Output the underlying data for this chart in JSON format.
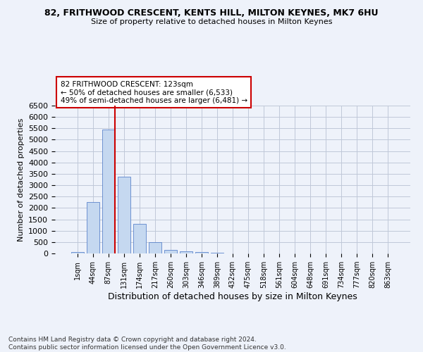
{
  "title": "82, FRITHWOOD CRESCENT, KENTS HILL, MILTON KEYNES, MK7 6HU",
  "subtitle": "Size of property relative to detached houses in Milton Keynes",
  "xlabel": "Distribution of detached houses by size in Milton Keynes",
  "ylabel": "Number of detached properties",
  "footer_line1": "Contains HM Land Registry data © Crown copyright and database right 2024.",
  "footer_line2": "Contains public sector information licensed under the Open Government Licence v3.0.",
  "bar_labels": [
    "1sqm",
    "44sqm",
    "87sqm",
    "131sqm",
    "174sqm",
    "217sqm",
    "260sqm",
    "303sqm",
    "346sqm",
    "389sqm",
    "432sqm",
    "475sqm",
    "518sqm",
    "561sqm",
    "604sqm",
    "648sqm",
    "691sqm",
    "734sqm",
    "777sqm",
    "820sqm",
    "863sqm"
  ],
  "bar_values": [
    75,
    2270,
    5450,
    3380,
    1310,
    480,
    155,
    80,
    55,
    35,
    0,
    0,
    0,
    0,
    0,
    0,
    0,
    0,
    0,
    0,
    0
  ],
  "bar_color": "#c5d8f0",
  "bar_edge_color": "#4472c4",
  "grid_color": "#c0c8d8",
  "background_color": "#eef2fa",
  "annotation_line1": "82 FRITHWOOD CRESCENT: 123sqm",
  "annotation_line2": "← 50% of detached houses are smaller (6,533)",
  "annotation_line3": "49% of semi-detached houses are larger (6,481) →",
  "annotation_box_color": "#ffffff",
  "annotation_box_edge_color": "#cc0000",
  "vline_bar_idx": 2,
  "vline_color": "#cc0000",
  "ylim_max": 6500,
  "ytick_step": 500
}
